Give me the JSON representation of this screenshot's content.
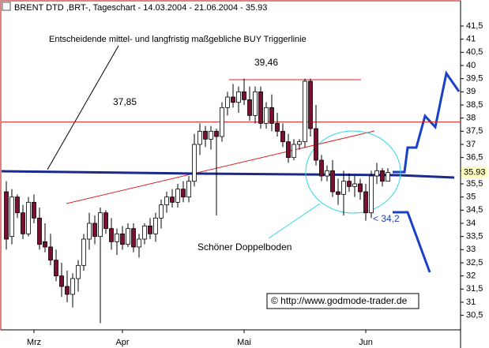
{
  "chart_data": {
    "type": "candlestick",
    "title": "BRENT DTD ,BRT-, Tageschart - 14.03.2004 - 21.06.2004 - 35.93",
    "categories": [
      null,
      null,
      null,
      null,
      null,
      "Mrz",
      null,
      null,
      null,
      null,
      null,
      null,
      null,
      null,
      null,
      null,
      null,
      null,
      null,
      null,
      null,
      "Apr",
      null,
      null,
      null,
      null,
      null,
      null,
      null,
      null,
      null,
      null,
      null,
      null,
      null,
      null,
      null,
      null,
      null,
      null,
      null,
      null,
      null,
      "Mai",
      null,
      null,
      null,
      null,
      null,
      null,
      null,
      null,
      null,
      null,
      null,
      null,
      null,
      null,
      null,
      null,
      null,
      null,
      null,
      null,
      null,
      "Jun",
      null,
      null,
      null,
      null
    ],
    "open": [
      35.2,
      33.5,
      35.0,
      34.4,
      33.6,
      34.8,
      34.2,
      33.3,
      33.1,
      32.6,
      32.0,
      31.6,
      31.3,
      31.9,
      32.4,
      33.4,
      34.0,
      33.5,
      34.4,
      33.8,
      33.3,
      33.6,
      33.2,
      33.8,
      33.1,
      33.4,
      33.9,
      33.6,
      34.2,
      34.7,
      35.0,
      34.8,
      35.3,
      35.0,
      35.6,
      37.0,
      37.5,
      37.2,
      37.5,
      37.3,
      38.4,
      38.8,
      38.6,
      39.0,
      38.7,
      38.1,
      39.0,
      37.8,
      38.4,
      37.8,
      37.5,
      37.1,
      36.5,
      37.0,
      37.1,
      39.4,
      37.6,
      36.4,
      35.8,
      36.0,
      35.2,
      35.1,
      35.6,
      35.4,
      35.5,
      35.2,
      34.4,
      35.8,
      36.0,
      35.6
    ],
    "high": [
      35.6,
      35.3,
      35.1,
      34.7,
      35.0,
      35.1,
      34.6,
      34.0,
      33.6,
      33.0,
      32.5,
      32.2,
      32.1,
      32.6,
      33.6,
      34.4,
      34.3,
      34.6,
      34.5,
      34.2,
      33.8,
      33.9,
      34.0,
      34.0,
      33.6,
      34.0,
      34.2,
      34.4,
      34.9,
      35.2,
      35.3,
      35.5,
      35.6,
      35.8,
      37.4,
      37.8,
      37.7,
      37.7,
      37.6,
      38.6,
      39.0,
      39.3,
      39.2,
      39.5,
      39.2,
      39.2,
      39.2,
      38.6,
      38.9,
      38.2,
      37.8,
      37.4,
      37.2,
      37.2,
      39.5,
      39.5,
      38.5,
      36.6,
      36.2,
      36.4,
      35.7,
      36.0,
      35.9,
      35.8,
      35.7,
      35.5,
      36.0,
      36.3,
      36.1,
      36.1
    ],
    "low": [
      33.0,
      33.2,
      34.2,
      33.4,
      33.5,
      34.0,
      33.0,
      32.9,
      32.4,
      31.8,
      31.2,
      31.0,
      30.8,
      31.4,
      32.2,
      33.0,
      33.2,
      30.2,
      33.6,
      33.0,
      32.8,
      33.0,
      33.1,
      32.9,
      32.7,
      33.2,
      33.4,
      33.3,
      33.8,
      34.4,
      34.6,
      34.6,
      34.8,
      34.8,
      35.4,
      36.6,
      36.9,
      36.8,
      34.3,
      37.1,
      38.1,
      38.4,
      38.2,
      38.5,
      37.9,
      37.8,
      37.6,
      37.6,
      37.5,
      37.3,
      36.9,
      36.3,
      36.4,
      36.8,
      36.9,
      37.3,
      36.2,
      35.6,
      35.6,
      35.0,
      34.7,
      34.3,
      35.2,
      35.0,
      34.9,
      34.1,
      34.2,
      35.5,
      35.4,
      35.6
    ],
    "close": [
      33.4,
      35.0,
      34.4,
      33.6,
      34.8,
      34.2,
      33.2,
      33.1,
      32.6,
      32.0,
      31.6,
      31.3,
      31.9,
      32.4,
      33.4,
      34.0,
      33.5,
      34.4,
      33.8,
      33.3,
      33.6,
      33.2,
      33.8,
      33.1,
      33.4,
      33.9,
      33.6,
      34.2,
      34.7,
      35.0,
      34.8,
      35.3,
      35.0,
      35.6,
      37.0,
      37.5,
      37.2,
      37.5,
      37.3,
      38.4,
      38.8,
      38.6,
      39.0,
      38.7,
      38.1,
      39.0,
      37.8,
      38.4,
      37.8,
      37.5,
      37.1,
      36.5,
      37.0,
      37.1,
      39.4,
      37.6,
      36.4,
      35.8,
      36.0,
      35.2,
      35.1,
      35.6,
      35.4,
      35.5,
      35.2,
      34.4,
      35.8,
      36.0,
      35.6,
      35.93
    ],
    "up_color": "#ffffff",
    "down_color": "#7a1030",
    "last_price": 35.93,
    "levels": [
      {
        "value": 37.85,
        "label": "37,85"
      },
      {
        "value": 39.46,
        "label": "39,46"
      }
    ],
    "annotations": [
      "Entscheidende mittel- und langfristig maßgebliche BUY Triggerlinie",
      "Schöner Doppelboden",
      "< 34,2",
      "© http://www.godmode-trader.de"
    ],
    "ylim": [
      29.95,
      41.95
    ],
    "yticks": [
      {
        "value": 30.5,
        "label": "30,5"
      },
      31,
      {
        "value": 31.5,
        "label": "31,5"
      },
      32,
      {
        "value": 32.5,
        "label": "32,5"
      },
      33,
      {
        "value": 33.5,
        "label": "33,5"
      },
      34,
      {
        "value": 34.5,
        "label": "34,5"
      },
      35,
      {
        "value": 35.5,
        "label": "35,5"
      },
      36,
      {
        "value": 36.5,
        "label": "36,5"
      },
      37,
      {
        "value": 37.5,
        "label": "37,5"
      },
      38,
      {
        "value": 38.5,
        "label": "38,5"
      },
      39,
      {
        "value": 39.5,
        "label": "39,5"
      },
      40,
      {
        "value": 40.5,
        "label": "40,5"
      },
      41,
      {
        "value": 41.5,
        "label": "41,5"
      }
    ]
  }
}
